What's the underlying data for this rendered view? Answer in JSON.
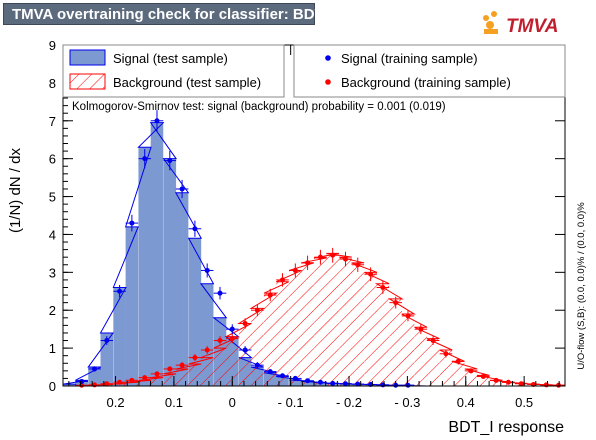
{
  "header": {
    "title": "TMVA overtraining check for classifier: BDT_I"
  },
  "logo": {
    "text": "TMVA"
  },
  "colors": {
    "signal_fill": "#7d99d1",
    "signal_line": "#0000ee",
    "background_line": "#ff0000",
    "background_points": "#ff0000",
    "header_bg": "#5c6a7d"
  },
  "chart_data": {
    "type": "bar",
    "title": "TMVA overtraining check for classifier: BDT_I",
    "xlabel": "BDT_I response",
    "ylabel": "(1/N) dN / dx",
    "xlim": [
      -0.57,
      0.29
    ],
    "ylim": [
      0,
      9
    ],
    "x_axis_reversed": true,
    "bin_width": 0.0215,
    "x_ticks": [
      {
        "value": -0.5,
        "label": "0.5"
      },
      {
        "value": -0.4,
        "label": "0.4"
      },
      {
        "value": -0.3,
        "label": "- 0.3"
      },
      {
        "value": -0.2,
        "label": "- 0.2"
      },
      {
        "value": -0.1,
        "label": "- 0.1"
      },
      {
        "value": 0.0,
        "label": "0"
      },
      {
        "value": 0.1,
        "label": "0.1"
      },
      {
        "value": 0.2,
        "label": "0.2"
      }
    ],
    "y_ticks": [
      0,
      1,
      2,
      3,
      4,
      5,
      6,
      7,
      8,
      9
    ],
    "annotation": "Kolmogorov-Smirnov test: signal (background) probability = 0.001 (0.019)",
    "side_text": "U/O-flow (S,B): (0.0, 0.0)% / (0.0, 0.0)%",
    "legend": [
      {
        "label": "Signal (test sample)",
        "style": "signal-box"
      },
      {
        "label": "Signal (training sample)",
        "style": "signal-marker"
      },
      {
        "label": "Background (test sample)",
        "style": "background-hatch"
      },
      {
        "label": "Background (training sample)",
        "style": "background-marker"
      }
    ],
    "series": [
      {
        "name": "Signal (test sample)",
        "kind": "histogram",
        "x": [
          -0.559,
          -0.538,
          -0.516,
          -0.495,
          -0.473,
          -0.452,
          -0.43,
          -0.409,
          -0.387,
          -0.366,
          -0.344,
          -0.323,
          -0.301,
          -0.28,
          -0.258,
          -0.237,
          -0.215,
          -0.194,
          -0.172,
          -0.151,
          -0.129,
          -0.108,
          -0.086,
          -0.065,
          -0.043,
          -0.022,
          0.0,
          0.021,
          0.043,
          0.064,
          0.086,
          0.107,
          0.129,
          0.15,
          0.172,
          0.193,
          0.215,
          0.236,
          0.258,
          0.279
        ],
        "values": [
          0.0,
          0.0,
          0.0,
          0.0,
          0.0,
          0.0,
          0.0,
          0.0,
          0.0,
          0.0,
          0.0,
          0.0,
          0.02,
          0.02,
          0.03,
          0.04,
          0.05,
          0.06,
          0.07,
          0.09,
          0.12,
          0.16,
          0.25,
          0.35,
          0.5,
          0.75,
          1.3,
          1.8,
          2.7,
          3.9,
          5.1,
          6.0,
          6.95,
          6.3,
          4.2,
          2.6,
          1.4,
          0.5,
          0.15,
          0.05
        ]
      },
      {
        "name": "Background (test sample)",
        "kind": "histogram",
        "x": [
          -0.559,
          -0.538,
          -0.516,
          -0.495,
          -0.473,
          -0.452,
          -0.43,
          -0.409,
          -0.387,
          -0.366,
          -0.344,
          -0.323,
          -0.301,
          -0.28,
          -0.258,
          -0.237,
          -0.215,
          -0.194,
          -0.172,
          -0.151,
          -0.129,
          -0.108,
          -0.086,
          -0.065,
          -0.043,
          -0.022,
          0.0,
          0.021,
          0.043,
          0.064,
          0.086,
          0.107,
          0.129,
          0.15,
          0.172,
          0.193,
          0.215,
          0.236,
          0.258,
          0.279
        ],
        "values": [
          0.02,
          0.03,
          0.05,
          0.07,
          0.1,
          0.15,
          0.28,
          0.45,
          0.65,
          0.95,
          1.25,
          1.55,
          1.9,
          2.3,
          2.7,
          3.0,
          3.25,
          3.4,
          3.5,
          3.38,
          3.25,
          3.05,
          2.75,
          2.45,
          2.05,
          1.65,
          1.3,
          1.0,
          0.75,
          0.58,
          0.45,
          0.32,
          0.22,
          0.15,
          0.1,
          0.06,
          0.04,
          0.02,
          0.01,
          0.0
        ]
      },
      {
        "name": "Signal (training sample)",
        "kind": "points",
        "x": [
          -0.301,
          -0.28,
          -0.258,
          -0.237,
          -0.215,
          -0.194,
          -0.172,
          -0.151,
          -0.129,
          -0.108,
          -0.086,
          -0.065,
          -0.043,
          -0.022,
          0.0,
          0.021,
          0.043,
          0.064,
          0.086,
          0.107,
          0.129,
          0.15,
          0.172,
          0.193,
          0.215,
          0.236,
          0.258
        ],
        "values": [
          0.02,
          0.02,
          0.03,
          0.04,
          0.05,
          0.06,
          0.07,
          0.1,
          0.14,
          0.2,
          0.27,
          0.38,
          0.55,
          0.95,
          1.5,
          2.45,
          3.05,
          4.15,
          5.2,
          5.95,
          7.0,
          6.0,
          4.3,
          2.5,
          1.2,
          0.45,
          0.12
        ]
      },
      {
        "name": "Background (training sample)",
        "kind": "points",
        "x": [
          -0.559,
          -0.538,
          -0.516,
          -0.495,
          -0.473,
          -0.452,
          -0.43,
          -0.409,
          -0.387,
          -0.366,
          -0.344,
          -0.323,
          -0.301,
          -0.28,
          -0.258,
          -0.237,
          -0.215,
          -0.194,
          -0.172,
          -0.151,
          -0.129,
          -0.108,
          -0.086,
          -0.065,
          -0.043,
          -0.022,
          0.0,
          0.021,
          0.043,
          0.064,
          0.086,
          0.107,
          0.129,
          0.15,
          0.172,
          0.193,
          0.215,
          0.236,
          0.258
        ],
        "values": [
          0.02,
          0.03,
          0.04,
          0.06,
          0.1,
          0.15,
          0.25,
          0.4,
          0.65,
          0.85,
          1.2,
          1.5,
          1.85,
          2.2,
          2.6,
          2.95,
          3.2,
          3.35,
          3.45,
          3.4,
          3.25,
          3.05,
          2.8,
          2.4,
          2.0,
          1.65,
          1.25,
          1.2,
          0.95,
          0.75,
          0.55,
          0.45,
          0.32,
          0.22,
          0.15,
          0.1,
          0.06,
          0.03,
          0.02
        ]
      }
    ]
  }
}
